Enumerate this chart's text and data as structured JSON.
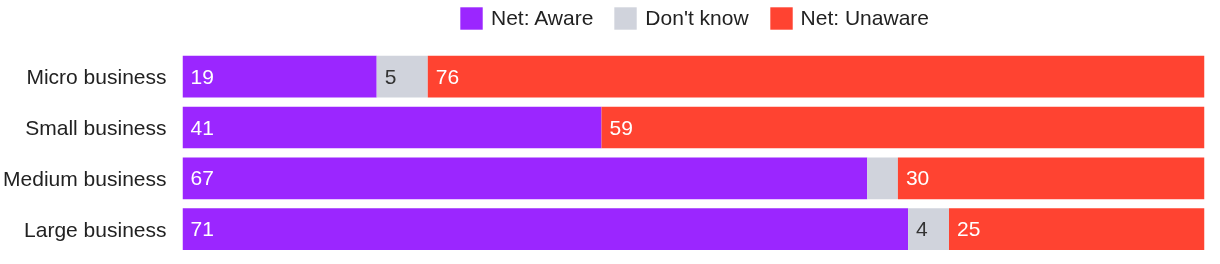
{
  "chart_data": {
    "type": "bar",
    "orientation": "horizontal",
    "stacked": true,
    "legend": "top",
    "categories": [
      "Micro business",
      "Small business",
      "Medium business",
      "Large business"
    ],
    "series": [
      {
        "name": "Net: Aware",
        "color": "#9b26ff",
        "values": [
          19,
          41,
          67,
          71
        ],
        "value_labels": [
          "19",
          "41",
          "67",
          "71"
        ]
      },
      {
        "name": "Don't know",
        "color": "#d0d3dc",
        "values": [
          5,
          0,
          3,
          4
        ],
        "value_labels": [
          "5",
          null,
          null,
          "4"
        ]
      },
      {
        "name": "Net: Unaware",
        "color": "#ff4331",
        "values": [
          76,
          59,
          30,
          25
        ],
        "value_labels": [
          "76",
          "59",
          "30",
          "25"
        ]
      }
    ]
  }
}
